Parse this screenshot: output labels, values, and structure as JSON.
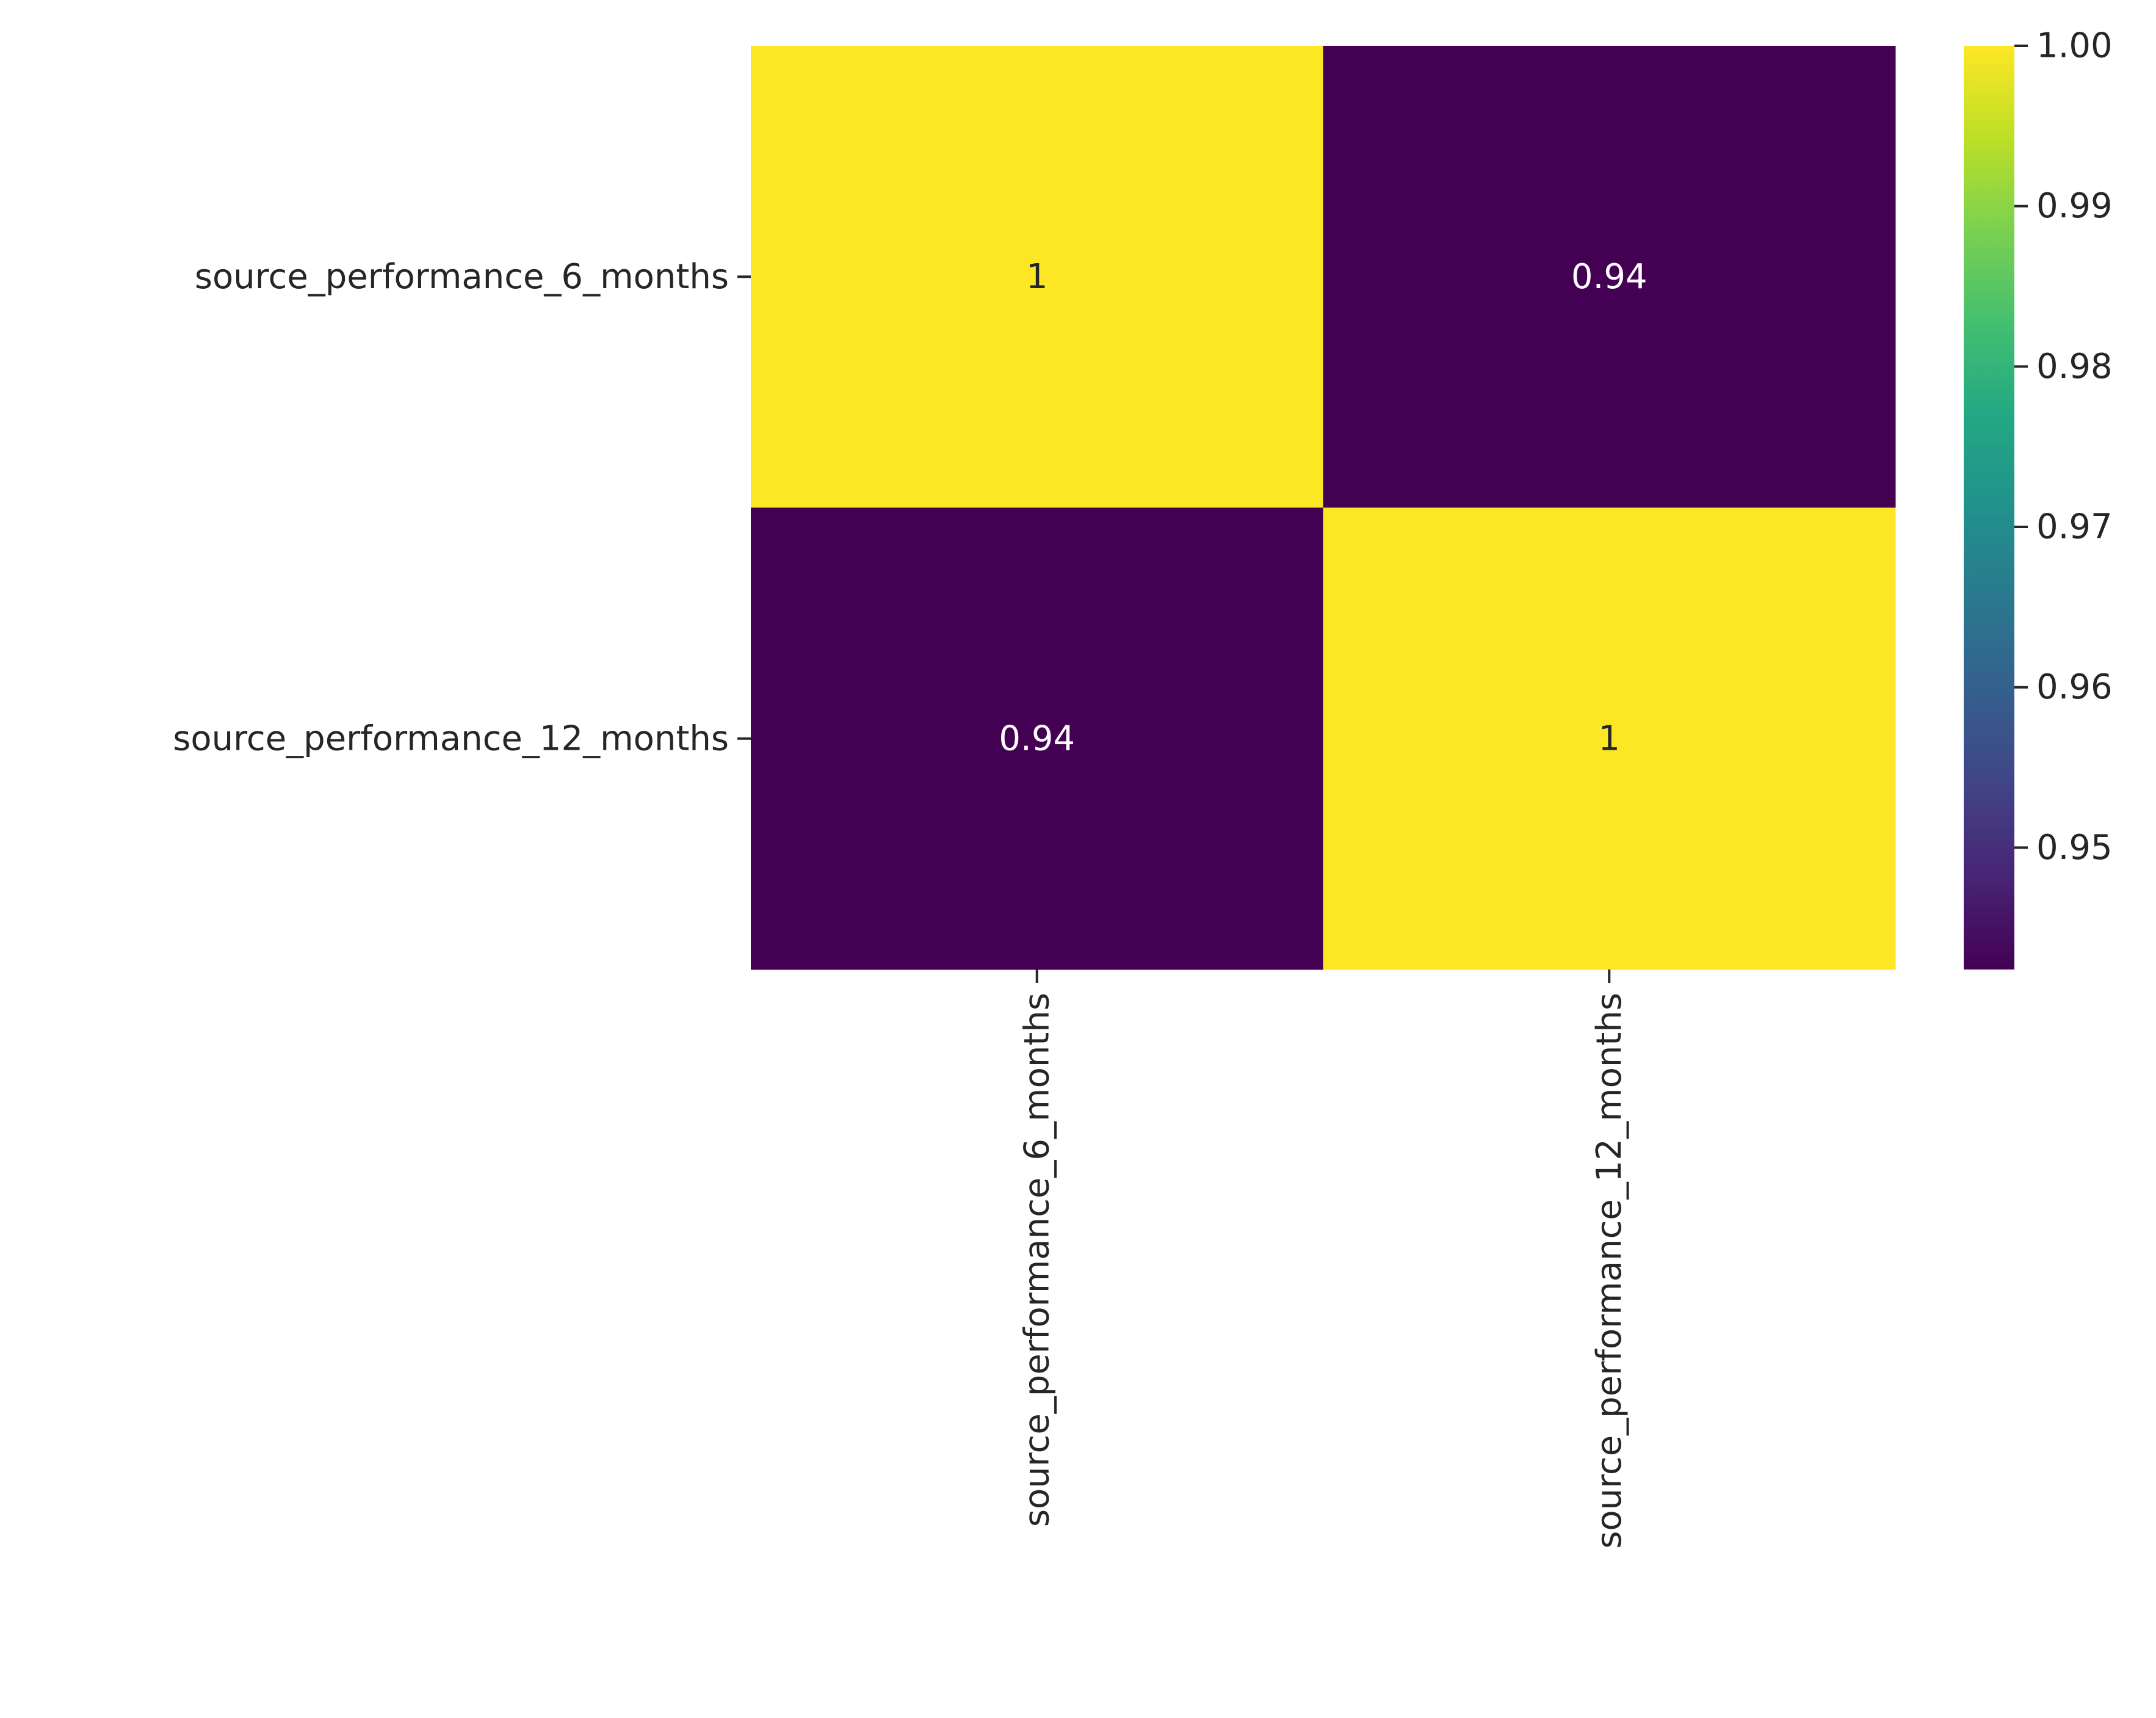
{
  "chart_data": {
    "type": "heatmap",
    "rows": [
      "source_performance_6_months",
      "source_performance_12_months"
    ],
    "columns": [
      "source_performance_6_months",
      "source_performance_12_months"
    ],
    "values": [
      [
        1.0,
        0.9424
      ],
      [
        0.9424,
        1.0
      ]
    ],
    "annotations": [
      [
        "1",
        "0.94"
      ],
      [
        "0.94",
        "1"
      ]
    ],
    "colormap": "viridis",
    "color_range": [
      0.9424,
      1.0
    ],
    "colorbar_ticks": [
      "0.95",
      "0.96",
      "0.97",
      "0.98",
      "0.99",
      "1.00"
    ],
    "colorbar_tick_values": [
      0.95,
      0.96,
      0.97,
      0.98,
      0.99,
      1.0
    ],
    "title": "",
    "xlabel": "",
    "ylabel": ""
  },
  "colors": {
    "high": "#fde725",
    "low": "#440154",
    "annotation_on_light": "#262626",
    "annotation_on_dark": "#ffffff",
    "axis_text": "#262626"
  }
}
